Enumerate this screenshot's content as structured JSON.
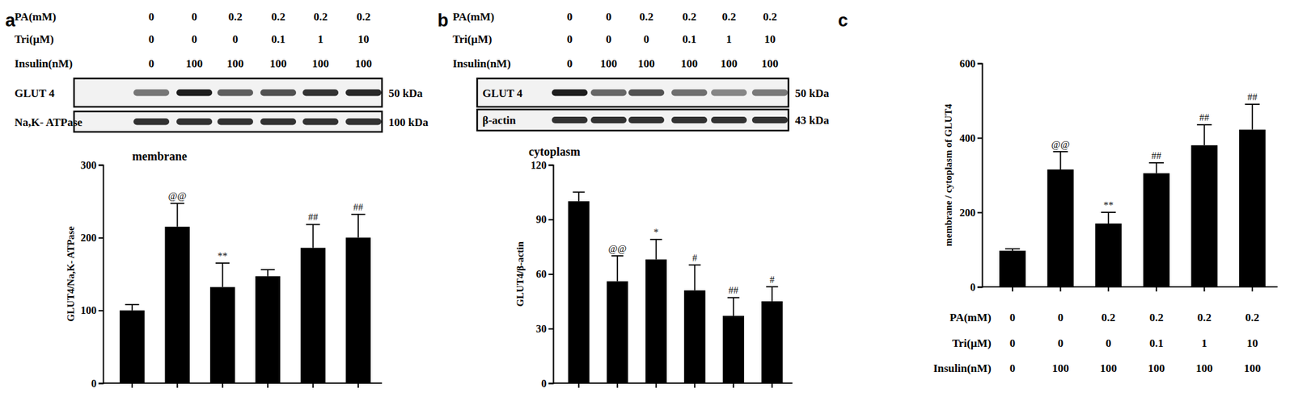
{
  "chart_data": [
    {
      "type": "bar",
      "panel": "a",
      "conditions": [
        {
          "label": "PA(mM)",
          "values": [
            0,
            0,
            0.2,
            0.2,
            0.2,
            0.2
          ]
        },
        {
          "label": "Tri(μM)",
          "values": [
            0,
            0,
            0,
            0.1,
            1,
            10
          ]
        },
        {
          "label": "Insulin(nM)",
          "values": [
            0,
            100,
            100,
            100,
            100,
            100
          ]
        }
      ],
      "blots": [
        {
          "label": "GLUT 4",
          "size": "50 kDa"
        },
        {
          "label": "Na,K- ATPase",
          "size": "100 kDa"
        }
      ],
      "note": "membrane",
      "y_label": "GLUT4/Na,K- ATPase",
      "categories": [
        null,
        null,
        null,
        null,
        null,
        null
      ],
      "values": [
        100,
        215,
        132,
        147,
        186,
        200
      ],
      "errors": [
        8,
        32,
        33,
        9,
        32,
        32
      ],
      "annotations": [
        null,
        "@@",
        "**",
        null,
        "##",
        "##"
      ],
      "color": "#000000",
      "ylim": [
        0,
        300
      ],
      "yticks": [
        0,
        100,
        200,
        300
      ],
      "tick_labels": "y"
    },
    {
      "type": "bar",
      "panel": "b",
      "conditions": [
        {
          "label": "PA(mM)",
          "values": [
            0,
            0,
            0.2,
            0.2,
            0.2,
            0.2
          ]
        },
        {
          "label": "Tri(μM)",
          "values": [
            0,
            0,
            0,
            0.1,
            1,
            10
          ]
        },
        {
          "label": "Insulin(nM)",
          "values": [
            0,
            100,
            100,
            100,
            100,
            100
          ]
        }
      ],
      "blots": [
        {
          "label": "GLUT 4",
          "size": "50 kDa"
        },
        {
          "label": "β-actin",
          "size": "43 kDa"
        }
      ],
      "note": "cytoplasm",
      "y_label": "GLUT4/β-actin",
      "categories": [
        null,
        null,
        null,
        null,
        null,
        null
      ],
      "values": [
        100,
        56,
        68,
        51,
        37,
        45
      ],
      "errors": [
        5,
        14,
        11,
        14,
        10,
        8
      ],
      "annotations": [
        null,
        "@@",
        "*",
        "#",
        "##",
        "#"
      ],
      "color": "#000000",
      "ylim": [
        0,
        120
      ],
      "yticks": [
        0,
        30,
        60,
        90,
        120
      ],
      "tick_labels": "y"
    },
    {
      "type": "bar",
      "panel": "c",
      "conditions": [
        {
          "label": "PA(mM)",
          "values": [
            0,
            0,
            0.2,
            0.2,
            0.2,
            0.2
          ]
        },
        {
          "label": "Tri(μM)",
          "values": [
            0,
            0,
            0,
            0.1,
            1,
            10
          ]
        },
        {
          "label": "Insulin(nM)",
          "values": [
            0,
            100,
            100,
            100,
            100,
            100
          ]
        }
      ],
      "y_label": "membrane / cytoplasm of GLUT4",
      "categories": [
        null,
        null,
        null,
        null,
        null,
        null
      ],
      "values": [
        97,
        315,
        170,
        305,
        380,
        422
      ],
      "errors": [
        5,
        48,
        30,
        28,
        55,
        68
      ],
      "annotations": [
        null,
        "@@",
        "**",
        "##",
        "##",
        "##"
      ],
      "color": "#000000",
      "ylim": [
        0,
        600
      ],
      "yticks": [
        0,
        200,
        400,
        600
      ],
      "tick_labels": "y"
    }
  ]
}
